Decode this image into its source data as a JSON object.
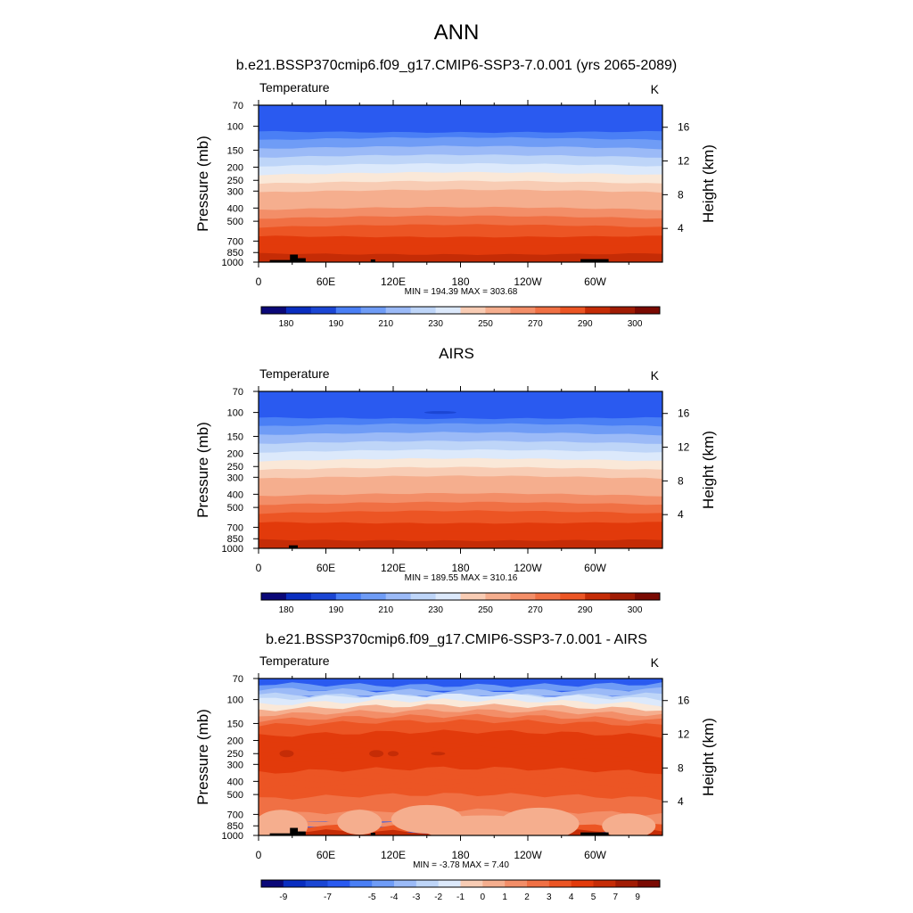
{
  "figure": {
    "title": "ANN"
  },
  "chart_data": [
    {
      "type": "contour",
      "panel_title": "b.e21.BSSP370cmip6.f09_g17.CMIP6-SSP3-7.0.001 (yrs 2065-2089)",
      "left_label": "Temperature",
      "right_label": "K",
      "ylabel_left": "Pressure (mb)",
      "ylabel_right": "Height (km)",
      "x_ticks": [
        "0",
        "60E",
        "120E",
        "180",
        "120W",
        "60W"
      ],
      "pressure_ticks": [
        "70",
        "100",
        "150",
        "200",
        "250",
        "300",
        "400",
        "500",
        "700",
        "850",
        "1000"
      ],
      "height_ticks": [
        "16",
        "12",
        "8",
        "4"
      ],
      "xlim": [
        0,
        360
      ],
      "ylim_mb": [
        1000,
        70
      ],
      "levels": [
        180,
        185,
        190,
        200,
        210,
        220,
        230,
        240,
        250,
        260,
        270,
        280,
        290,
        295,
        300
      ],
      "colorbar_labels": [
        "180",
        "190",
        "210",
        "230",
        "250",
        "270",
        "290",
        "300"
      ],
      "stats": "MIN = 194.39  MAX = 303.68",
      "min": 194.39,
      "max": 303.68,
      "topography": true
    },
    {
      "type": "contour",
      "panel_title": "AIRS",
      "left_label": "Temperature",
      "right_label": "K",
      "ylabel_left": "Pressure (mb)",
      "ylabel_right": "Height (km)",
      "x_ticks": [
        "0",
        "60E",
        "120E",
        "180",
        "120W",
        "60W"
      ],
      "pressure_ticks": [
        "70",
        "100",
        "150",
        "200",
        "250",
        "300",
        "400",
        "500",
        "700",
        "850",
        "1000"
      ],
      "height_ticks": [
        "16",
        "12",
        "8",
        "4"
      ],
      "xlim": [
        0,
        360
      ],
      "ylim_mb": [
        1000,
        70
      ],
      "levels": [
        180,
        185,
        190,
        200,
        210,
        220,
        230,
        240,
        250,
        260,
        270,
        280,
        290,
        295,
        300
      ],
      "colorbar_labels": [
        "180",
        "190",
        "210",
        "230",
        "250",
        "270",
        "290",
        "300"
      ],
      "stats": "MIN = 189.55  MAX = 310.16",
      "min": 189.55,
      "max": 310.16,
      "topography": false
    },
    {
      "type": "contour",
      "panel_title": "b.e21.BSSP370cmip6.f09_g17.CMIP6-SSP3-7.0.001 - AIRS",
      "left_label": "Temperature",
      "right_label": "K",
      "ylabel_left": "Pressure (mb)",
      "ylabel_right": "Height (km)",
      "x_ticks": [
        "0",
        "60E",
        "120E",
        "180",
        "120W",
        "60W"
      ],
      "pressure_ticks": [
        "70",
        "100",
        "150",
        "200",
        "250",
        "300",
        "400",
        "500",
        "700",
        "850",
        "1000"
      ],
      "height_ticks": [
        "16",
        "12",
        "8",
        "4"
      ],
      "xlim": [
        0,
        360
      ],
      "ylim_mb": [
        1000,
        70
      ],
      "levels": [
        -9,
        -8,
        -7,
        -6,
        -5,
        -4,
        -3,
        -2,
        -1,
        0,
        1,
        2,
        3,
        4,
        5,
        7,
        9
      ],
      "colorbar_labels": [
        "-9",
        "-7",
        "-5",
        "-4",
        "-3",
        "-2",
        "-1",
        "0",
        "1",
        "2",
        "3",
        "4",
        "5",
        "7",
        "9"
      ],
      "stats": "MIN =  -3.78  MAX =   7.40",
      "min": -3.78,
      "max": 7.4,
      "topography": true
    }
  ],
  "colors": {
    "palette": [
      "#0b0878",
      "#0a2ec0",
      "#1b46d4",
      "#2a5af0",
      "#4a7ff5",
      "#6f9cf6",
      "#9bbaf7",
      "#bed5f8",
      "#dce9fb",
      "#fae8d8",
      "#f8ccb4",
      "#f5ae8e",
      "#f38e68",
      "#f07044",
      "#ec5524",
      "#e23a0b",
      "#c52c06",
      "#a11c04",
      "#7a0a02"
    ],
    "topo": "#000000"
  }
}
